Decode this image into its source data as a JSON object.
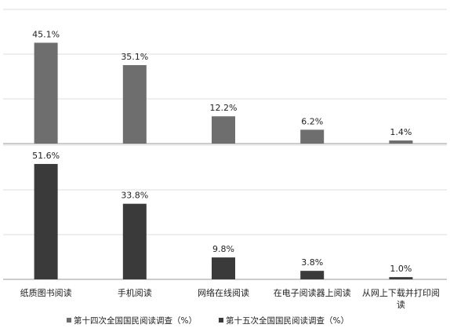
{
  "chart_data": {
    "type": "bar",
    "categories": [
      "纸质图书阅读",
      "手机阅读",
      "网络在线阅读",
      "在电子阅读器上阅读",
      "从网上下载并打印阅读"
    ],
    "series": [
      {
        "name": "第十四次全国国民阅读调查（%）",
        "values": [
          45.1,
          35.1,
          12.2,
          6.2,
          1.4
        ],
        "labels": [
          "45.1%",
          "35.1%",
          "12.2%",
          "6.2%",
          "1.4%"
        ],
        "color": "#6e6e6e"
      },
      {
        "name": "第十五次全国国民阅读调查（%）",
        "values": [
          51.6,
          33.8,
          9.8,
          3.8,
          1.0
        ],
        "labels": [
          "51.6%",
          "33.8%",
          "9.8%",
          "3.8%",
          "1.0%"
        ],
        "color": "#3a3a3a"
      }
    ],
    "ylim": [
      0,
      60
    ],
    "grid": true,
    "legend": "bottom",
    "title": "",
    "xlabel": "",
    "ylabel": ""
  }
}
